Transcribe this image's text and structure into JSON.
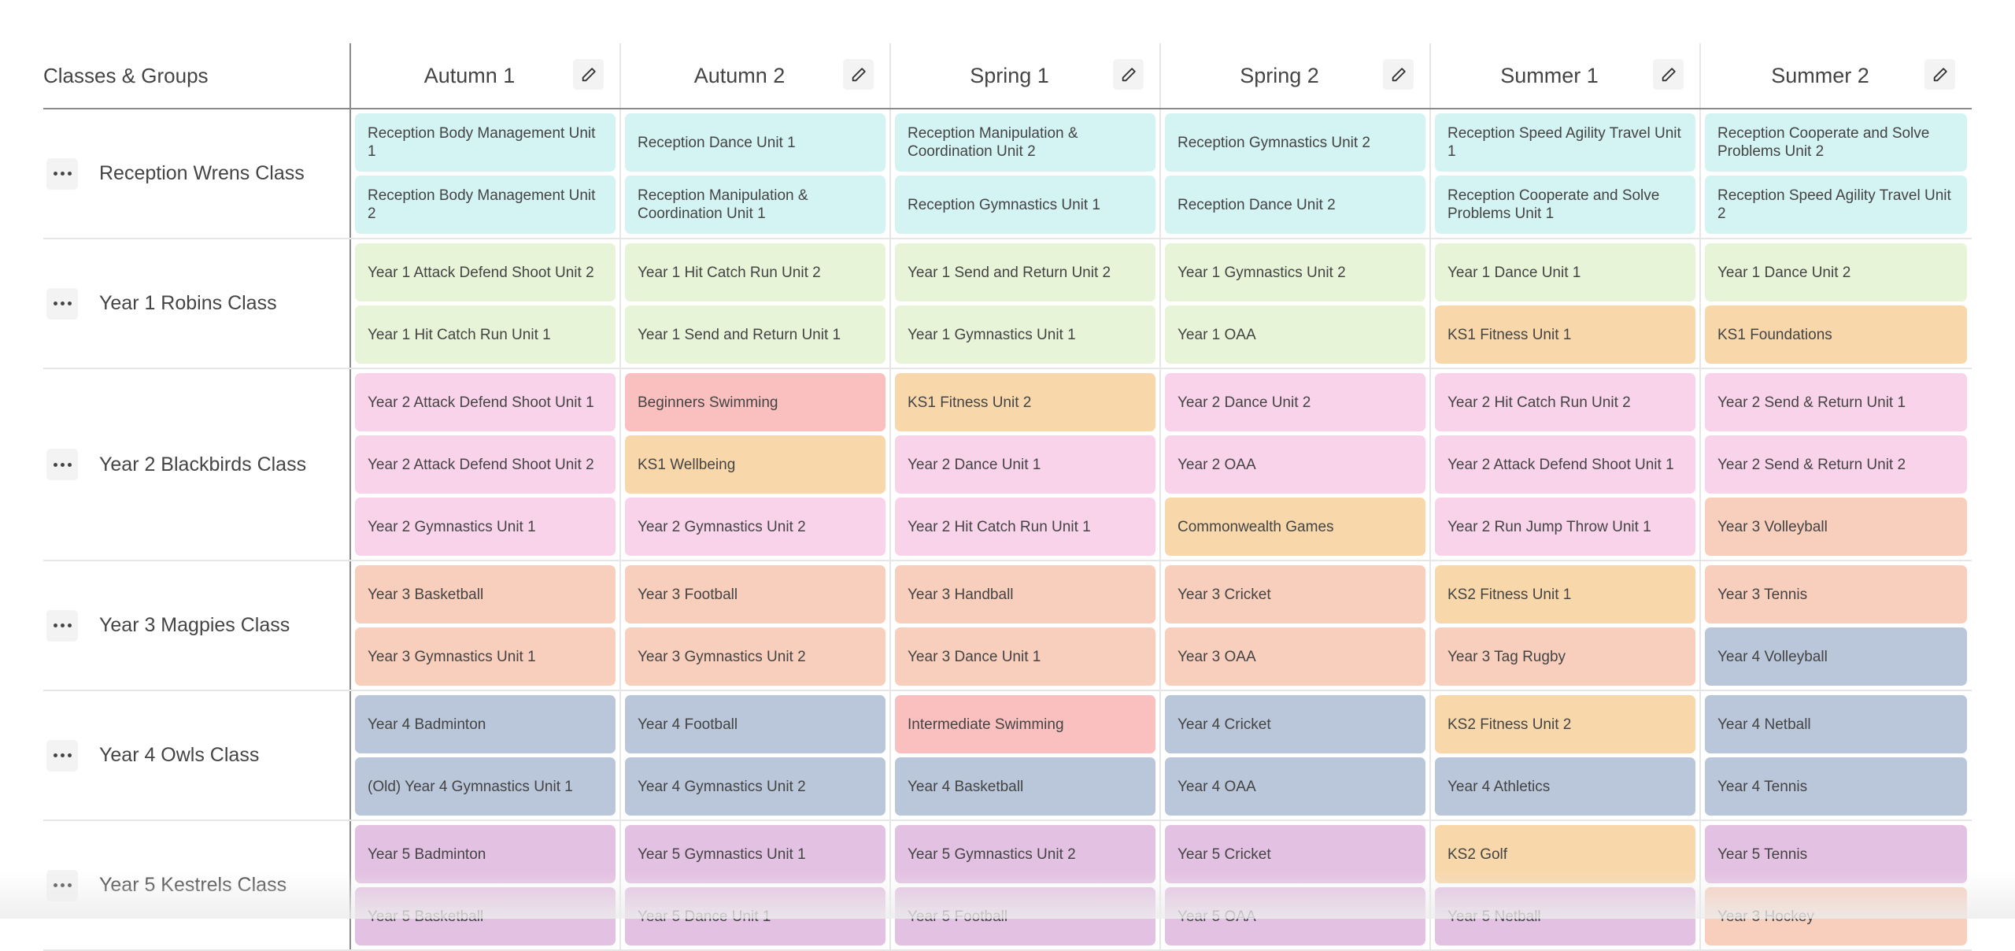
{
  "header": {
    "first_column": "Classes & Groups",
    "terms": [
      {
        "label": "Autumn 1",
        "edit_icon": "pencil-icon"
      },
      {
        "label": "Autumn 2",
        "edit_icon": "pencil-icon"
      },
      {
        "label": "Spring 1",
        "edit_icon": "pencil-icon"
      },
      {
        "label": "Spring 2",
        "edit_icon": "pencil-icon"
      },
      {
        "label": "Summer 1",
        "edit_icon": "pencil-icon"
      },
      {
        "label": "Summer 2",
        "edit_icon": "pencil-icon"
      }
    ]
  },
  "colors": {
    "teal": "#d4f3f3",
    "green": "#e8f4d8",
    "pink": "#f9d3ea",
    "orange": "#f8d7ab",
    "salmon": "#f9c0bf",
    "peach": "#f8cebc",
    "blue": "#bac6d9",
    "lavender": "#e3c1e2"
  },
  "rows": [
    {
      "name": "Reception Wrens Class",
      "menu_icon": "more-horizontal-icon",
      "terms": [
        [
          {
            "label": "Reception Body Management Unit 1",
            "color": "teal"
          },
          {
            "label": "Reception Body Management Unit 2",
            "color": "teal"
          }
        ],
        [
          {
            "label": "Reception Dance Unit 1",
            "color": "teal"
          },
          {
            "label": "Reception Manipulation & Coordination Unit 1",
            "color": "teal"
          }
        ],
        [
          {
            "label": "Reception Manipulation & Coordination Unit 2",
            "color": "teal"
          },
          {
            "label": "Reception Gymnastics Unit 1",
            "color": "teal"
          }
        ],
        [
          {
            "label": "Reception Gymnastics Unit 2",
            "color": "teal"
          },
          {
            "label": "Reception Dance Unit 2",
            "color": "teal"
          }
        ],
        [
          {
            "label": "Reception Speed Agility Travel Unit 1",
            "color": "teal"
          },
          {
            "label": "Reception Cooperate and Solve Problems Unit 1",
            "color": "teal"
          }
        ],
        [
          {
            "label": "Reception Cooperate and Solve Problems Unit 2",
            "color": "teal"
          },
          {
            "label": "Reception Speed Agility Travel Unit 2",
            "color": "teal"
          }
        ]
      ]
    },
    {
      "name": "Year 1 Robins Class",
      "menu_icon": "more-horizontal-icon",
      "terms": [
        [
          {
            "label": "Year 1 Attack Defend Shoot Unit 2",
            "color": "green"
          },
          {
            "label": "Year 1 Hit Catch Run Unit 1",
            "color": "green"
          }
        ],
        [
          {
            "label": "Year 1 Hit Catch Run Unit 2",
            "color": "green"
          },
          {
            "label": "Year 1 Send and Return Unit 1",
            "color": "green"
          }
        ],
        [
          {
            "label": "Year 1 Send and Return Unit 2",
            "color": "green"
          },
          {
            "label": "Year 1 Gymnastics Unit 1",
            "color": "green"
          }
        ],
        [
          {
            "label": "Year 1 Gymnastics Unit 2",
            "color": "green"
          },
          {
            "label": "Year 1 OAA",
            "color": "green"
          }
        ],
        [
          {
            "label": "Year 1 Dance Unit 1",
            "color": "green"
          },
          {
            "label": "KS1 Fitness Unit 1",
            "color": "orange"
          }
        ],
        [
          {
            "label": "Year 1 Dance Unit 2",
            "color": "green"
          },
          {
            "label": "KS1 Foundations",
            "color": "orange"
          }
        ]
      ]
    },
    {
      "name": "Year 2 Blackbirds Class",
      "menu_icon": "more-horizontal-icon",
      "terms": [
        [
          {
            "label": "Year 2 Attack Defend Shoot Unit 1",
            "color": "pink"
          },
          {
            "label": "Year 2 Attack Defend Shoot Unit 2",
            "color": "pink"
          },
          {
            "label": "Year 2 Gymnastics Unit 1",
            "color": "pink"
          }
        ],
        [
          {
            "label": "Beginners Swimming",
            "color": "salmon"
          },
          {
            "label": "KS1 Wellbeing",
            "color": "orange"
          },
          {
            "label": "Year 2 Gymnastics Unit 2",
            "color": "pink"
          }
        ],
        [
          {
            "label": "KS1 Fitness Unit 2",
            "color": "orange"
          },
          {
            "label": "Year 2 Dance Unit 1",
            "color": "pink"
          },
          {
            "label": "Year 2 Hit Catch Run Unit 1",
            "color": "pink"
          }
        ],
        [
          {
            "label": "Year 2 Dance Unit 2",
            "color": "pink"
          },
          {
            "label": "Year 2 OAA",
            "color": "pink"
          },
          {
            "label": "Commonwealth Games",
            "color": "orange"
          }
        ],
        [
          {
            "label": "Year 2 Hit Catch Run Unit 2",
            "color": "pink"
          },
          {
            "label": "Year 2 Attack Defend Shoot Unit 1",
            "color": "pink"
          },
          {
            "label": "Year 2 Run Jump Throw Unit 1",
            "color": "pink"
          }
        ],
        [
          {
            "label": "Year 2 Send & Return Unit 1",
            "color": "pink"
          },
          {
            "label": "Year 2 Send & Return Unit 2",
            "color": "pink"
          },
          {
            "label": "Year 3 Volleyball",
            "color": "peach"
          }
        ]
      ]
    },
    {
      "name": "Year 3 Magpies Class",
      "menu_icon": "more-horizontal-icon",
      "terms": [
        [
          {
            "label": "Year 3 Basketball",
            "color": "peach"
          },
          {
            "label": "Year 3 Gymnastics Unit 1",
            "color": "peach"
          }
        ],
        [
          {
            "label": "Year 3 Football",
            "color": "peach"
          },
          {
            "label": "Year 3 Gymnastics Unit 2",
            "color": "peach"
          }
        ],
        [
          {
            "label": "Year 3 Handball",
            "color": "peach"
          },
          {
            "label": "Year 3 Dance Unit 1",
            "color": "peach"
          }
        ],
        [
          {
            "label": "Year 3 Cricket",
            "color": "peach"
          },
          {
            "label": "Year 3 OAA",
            "color": "peach"
          }
        ],
        [
          {
            "label": "KS2 Fitness Unit 1",
            "color": "orange"
          },
          {
            "label": "Year 3 Tag Rugby",
            "color": "peach"
          }
        ],
        [
          {
            "label": "Year 3 Tennis",
            "color": "peach"
          },
          {
            "label": "Year 4 Volleyball",
            "color": "blue"
          }
        ]
      ]
    },
    {
      "name": "Year 4 Owls Class",
      "menu_icon": "more-horizontal-icon",
      "terms": [
        [
          {
            "label": "Year 4 Badminton",
            "color": "blue"
          },
          {
            "label": "(Old) Year 4 Gymnastics Unit 1",
            "color": "blue"
          }
        ],
        [
          {
            "label": "Year 4 Football",
            "color": "blue"
          },
          {
            "label": "Year 4 Gymnastics Unit 2",
            "color": "blue"
          }
        ],
        [
          {
            "label": "Intermediate Swimming",
            "color": "salmon"
          },
          {
            "label": "Year 4 Basketball",
            "color": "blue"
          }
        ],
        [
          {
            "label": "Year 4 Cricket",
            "color": "blue"
          },
          {
            "label": "Year 4 OAA",
            "color": "blue"
          }
        ],
        [
          {
            "label": "KS2 Fitness Unit 2",
            "color": "orange"
          },
          {
            "label": "Year 4 Athletics",
            "color": "blue"
          }
        ],
        [
          {
            "label": "Year 4 Netball",
            "color": "blue"
          },
          {
            "label": "Year 4 Tennis",
            "color": "blue"
          }
        ]
      ]
    },
    {
      "name": "Year 5 Kestrels Class",
      "menu_icon": "more-horizontal-icon",
      "terms": [
        [
          {
            "label": "Year 5 Badminton",
            "color": "lavender"
          },
          {
            "label": "Year 5 Basketball",
            "color": "lavender"
          }
        ],
        [
          {
            "label": "Year 5 Gymnastics Unit 1",
            "color": "lavender"
          },
          {
            "label": "Year 5 Dance Unit 1",
            "color": "lavender"
          }
        ],
        [
          {
            "label": "Year 5 Gymnastics Unit 2",
            "color": "lavender"
          },
          {
            "label": "Year 5 Football",
            "color": "lavender"
          }
        ],
        [
          {
            "label": "Year 5 Cricket",
            "color": "lavender"
          },
          {
            "label": "Year 5 OAA",
            "color": "lavender"
          }
        ],
        [
          {
            "label": "KS2 Golf",
            "color": "orange"
          },
          {
            "label": "Year 5 Netball",
            "color": "lavender"
          }
        ],
        [
          {
            "label": "Year 5 Tennis",
            "color": "lavender"
          },
          {
            "label": "Year 3 Hockey",
            "color": "peach"
          }
        ]
      ]
    }
  ]
}
